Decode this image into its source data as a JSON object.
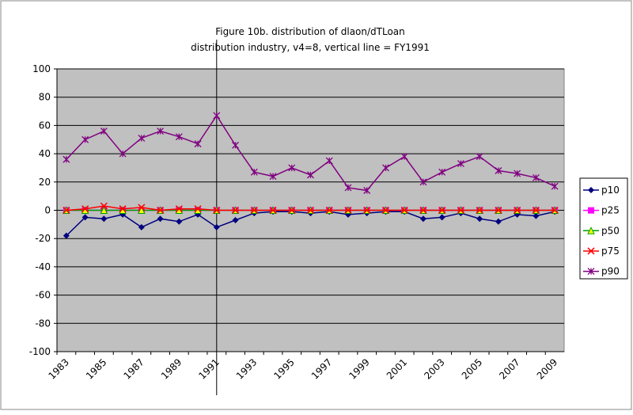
{
  "chart_data": {
    "type": "line",
    "title": "Figure 10b. distribution of dlaon/dTLoan",
    "subtitle": "distribution industry, v4=8, vertical line = FY1991",
    "categories": [
      "1983",
      null,
      "1985",
      null,
      "1987",
      null,
      "1989",
      null,
      "1991",
      null,
      "1993",
      null,
      "1995",
      null,
      "1997",
      null,
      "1999",
      null,
      "2001",
      null,
      "2003",
      null,
      "2005",
      null,
      "2007",
      null,
      "2009"
    ],
    "vertical_line": "1991",
    "ylim": [
      -100,
      100
    ],
    "yticks": [
      -100,
      -80,
      -60,
      -40,
      -20,
      0,
      20,
      40,
      60,
      80,
      100
    ],
    "grid": true,
    "legend": "right",
    "series": [
      {
        "name": "p10",
        "color": "#000080",
        "marker": "diamond",
        "values": [
          -18,
          -5,
          -6,
          -3,
          -12,
          -6,
          -8,
          -3,
          -12,
          -7,
          -2,
          -1,
          -1,
          -2,
          -1,
          -3,
          -2,
          -1,
          -1,
          -6,
          -5,
          -2,
          -6,
          -8,
          -3,
          -4,
          -1
        ]
      },
      {
        "name": "p25",
        "color": "#ff00ff",
        "marker": "square",
        "values": [
          0,
          0,
          0,
          0,
          0,
          0,
          0,
          0,
          0,
          0,
          0,
          0,
          0,
          0,
          0,
          0,
          0,
          0,
          0,
          0,
          0,
          0,
          0,
          0,
          0,
          0,
          0
        ]
      },
      {
        "name": "p50",
        "color": "#00a000",
        "marker": "triangle",
        "values": [
          0,
          0,
          0,
          0,
          0,
          0,
          0,
          0,
          0,
          0,
          0,
          0,
          0,
          0,
          0,
          0,
          0,
          0,
          0,
          0,
          0,
          0,
          0,
          0,
          0,
          0,
          0
        ]
      },
      {
        "name": "p75",
        "color": "#ff0000",
        "marker": "x",
        "values": [
          0,
          1,
          3,
          1,
          2,
          0,
          1,
          1,
          0,
          0,
          0,
          0,
          0,
          0,
          0,
          0,
          0,
          0,
          0,
          0,
          0,
          0,
          0,
          0,
          0,
          0,
          0
        ]
      },
      {
        "name": "p90",
        "color": "#800080",
        "marker": "star",
        "values": [
          36,
          50,
          56,
          40,
          51,
          56,
          52,
          47,
          67,
          46,
          27,
          24,
          30,
          25,
          35,
          16,
          14,
          30,
          38,
          20,
          27,
          33,
          38,
          28,
          26,
          23,
          17
        ]
      }
    ]
  }
}
